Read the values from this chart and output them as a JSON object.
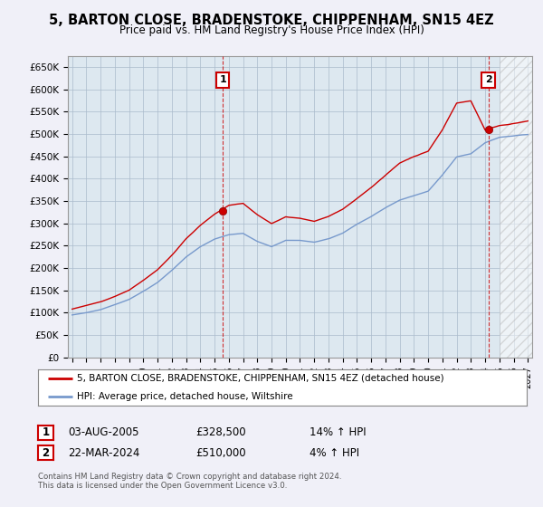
{
  "title": "5, BARTON CLOSE, BRADENSTOKE, CHIPPENHAM, SN15 4EZ",
  "subtitle": "Price paid vs. HM Land Registry's House Price Index (HPI)",
  "legend_line1": "5, BARTON CLOSE, BRADENSTOKE, CHIPPENHAM, SN15 4EZ (detached house)",
  "legend_line2": "HPI: Average price, detached house, Wiltshire",
  "annotation1_date": "03-AUG-2005",
  "annotation1_price": "£328,500",
  "annotation1_hpi": "14% ↑ HPI",
  "annotation2_date": "22-MAR-2024",
  "annotation2_price": "£510,000",
  "annotation2_hpi": "4% ↑ HPI",
  "copyright": "Contains HM Land Registry data © Crown copyright and database right 2024.\nThis data is licensed under the Open Government Licence v3.0.",
  "line1_color": "#cc0000",
  "line2_color": "#7799cc",
  "dashed_line_color": "#cc0000",
  "background_color": "#f0f0f8",
  "plot_bg_color": "#dde8f0",
  "grid_color": "#aabbcc",
  "ylim": [
    0,
    675000
  ],
  "sale1_x": 2005.58,
  "sale1_y": 328500,
  "sale2_x": 2024.22,
  "sale2_y": 510000,
  "hatch_start": 2025.0,
  "xlim_left": 1994.7,
  "xlim_right": 2027.3
}
